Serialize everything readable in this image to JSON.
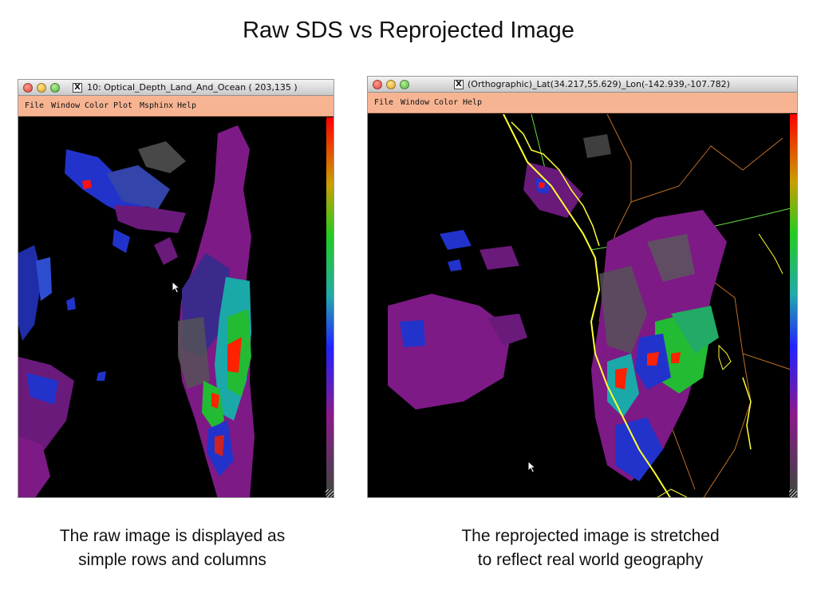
{
  "slide": {
    "title": "Raw SDS vs Reprojected Image"
  },
  "raw_window": {
    "title": "10: Optical_Depth_Land_And_Ocean ( 203,135 )",
    "x_glyph": "X",
    "menu": [
      "File",
      "Window",
      "Color",
      "Plot",
      "Msphinx",
      "Help"
    ],
    "caption_lines": [
      "The raw image is displayed as",
      "simple rows and columns"
    ]
  },
  "reprojected_window": {
    "title": "(Orthographic)_Lat(34.217,55.629)_Lon(-142.939,-107.782)",
    "x_glyph": "X",
    "menu": [
      "File",
      "Window",
      "Color",
      "Help"
    ],
    "caption_lines": [
      "The reprojected image is stretched",
      "to reflect real world geography"
    ]
  },
  "colors": {
    "menubar": "#f7b493",
    "coastline": "#ffff33",
    "border_lines": "#c06f2a",
    "graticule": "#66dd44",
    "data_purple": "#8a1a8a",
    "colorbar": [
      "#ff0000",
      "#c8a000",
      "#22cc22",
      "#22aaaa",
      "#2222ff",
      "#8a1a8a",
      "#444444"
    ]
  },
  "icons": [
    "close-icon",
    "minimize-icon",
    "zoom-icon",
    "x11-icon",
    "resize-grip-icon",
    "arrow-cursor-icon"
  ]
}
